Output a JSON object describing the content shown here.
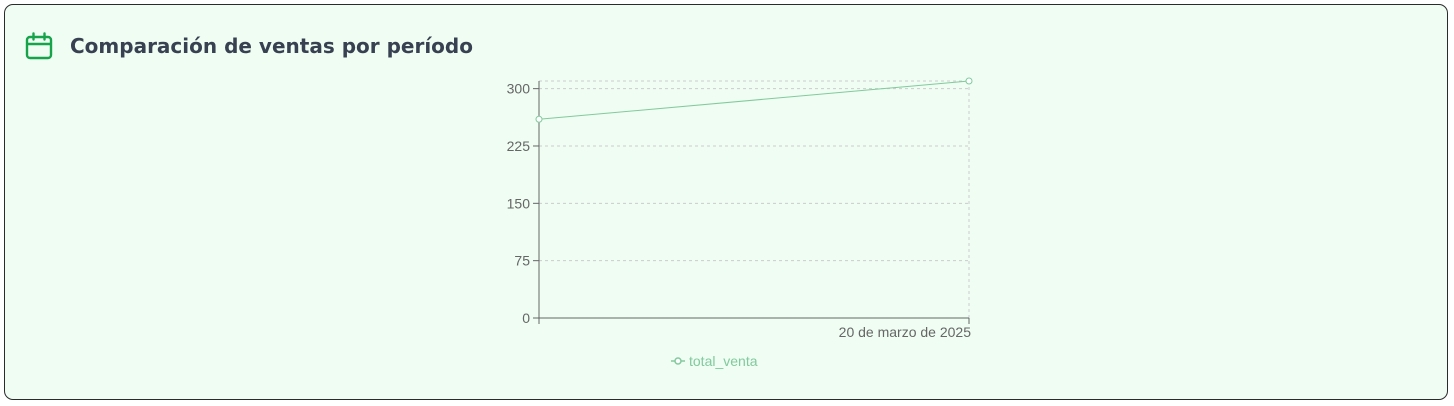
{
  "header": {
    "title": "Comparación de ventas por período",
    "icon": "calendar-icon",
    "icon_color": "#16a34a"
  },
  "chart_data": {
    "type": "line",
    "x": [
      "",
      "20 de marzo de 2025"
    ],
    "series": [
      {
        "name": "total_venta",
        "values": [
          260,
          310
        ],
        "color": "#82ca9d"
      }
    ],
    "yticks": [
      0,
      75,
      150,
      225,
      300
    ],
    "ylim": [
      0,
      310
    ],
    "xlabel": "",
    "ylabel": "",
    "grid": true,
    "legend": "bottom-center"
  },
  "colors": {
    "background": "#effdf3",
    "border": "#2b2b2b",
    "line": "#82ca9d",
    "axis": "#666666",
    "grid": "#cccccc"
  }
}
